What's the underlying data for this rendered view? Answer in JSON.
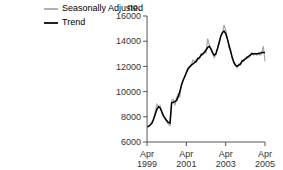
{
  "chart_data": {
    "type": "line",
    "y_label": "no.",
    "categories": [
      "Apr 1999",
      null,
      null,
      null,
      null,
      null,
      null,
      null,
      null,
      null,
      null,
      null,
      null,
      null,
      null,
      null,
      null,
      null,
      null,
      null,
      null,
      null,
      null,
      null,
      "Apr 2001",
      null,
      null,
      null,
      null,
      null,
      null,
      null,
      null,
      null,
      null,
      null,
      null,
      null,
      null,
      null,
      null,
      null,
      null,
      null,
      null,
      null,
      null,
      null,
      "Apr 2003",
      null,
      null,
      null,
      null,
      null,
      null,
      null,
      null,
      null,
      null,
      null,
      null,
      null,
      null,
      null,
      null,
      null,
      null,
      null,
      null,
      null,
      null,
      null,
      "Apr 2005"
    ],
    "series": [
      {
        "name": "Trend",
        "color": "#000000",
        "values": [
          7200,
          7250,
          7350,
          7500,
          7800,
          8200,
          8600,
          8800,
          8700,
          8400,
          8100,
          7900,
          7700,
          7550,
          7500,
          9100,
          9150,
          9200,
          9300,
          9600,
          10000,
          10500,
          10900,
          11200,
          11500,
          11800,
          11950,
          12100,
          12200,
          12300,
          12400,
          12600,
          12700,
          12900,
          13000,
          13100,
          13300,
          13500,
          13600,
          13400,
          13100,
          12900,
          13000,
          13400,
          13900,
          14400,
          14700,
          14800,
          14600,
          14200,
          13700,
          13200,
          12700,
          12300,
          12100,
          12000,
          12100,
          12200,
          12400,
          12500,
          12600,
          12700,
          12800,
          12900,
          13000,
          13000,
          13000,
          13000,
          13000,
          13050,
          13100,
          13100,
          13100
        ]
      },
      {
        "name": "Seasonally Adjusted",
        "color": "#a6a6a6",
        "values": [
          7200,
          7300,
          7400,
          7600,
          7900,
          8400,
          9000,
          8800,
          8900,
          8300,
          8000,
          7800,
          7600,
          7400,
          7300,
          9300,
          9400,
          8900,
          9500,
          9800,
          9600,
          10600,
          10900,
          11100,
          11600,
          11900,
          12000,
          12100,
          12500,
          12400,
          12500,
          12700,
          12600,
          13000,
          12900,
          13200,
          13100,
          14200,
          13700,
          13300,
          13000,
          12700,
          12900,
          13500,
          13800,
          14400,
          14600,
          15300,
          14900,
          14300,
          13500,
          13300,
          12600,
          12400,
          12100,
          11900,
          12200,
          12100,
          12500,
          12400,
          12600,
          12800,
          12700,
          12900,
          13100,
          12900,
          13000,
          12900,
          13100,
          12900,
          13000,
          13600,
          12400
        ]
      }
    ],
    "ylim": [
      6000,
      16000
    ],
    "yticks": [
      6000,
      8000,
      10000,
      12000,
      14000,
      16000
    ],
    "grid": false,
    "legend": "upper left"
  }
}
